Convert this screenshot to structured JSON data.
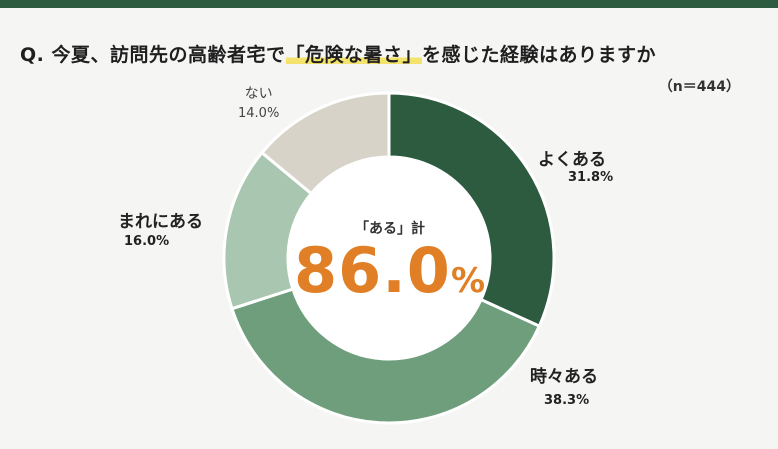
{
  "question": {
    "prefix": "Q. 今夏、訪問先の高齢者宅で",
    "highlight": "「危険な暑さ」",
    "suffix": "を感じた経験はありますか",
    "sample": "（n＝444）"
  },
  "center": {
    "label": "「ある」計",
    "value": "86.0",
    "unit": "%"
  },
  "colors": {
    "often": "#2d5b3f",
    "sometimes": "#6e9e7b",
    "rarely": "#a9c6b0",
    "never": "#d8d3c8",
    "accent": "#e07f25",
    "highlight": "#f3e26c"
  },
  "chart_data": {
    "type": "pie",
    "title": "Q. 今夏、訪問先の高齢者宅で「危険な暑さ」を感じた経験はありますか",
    "sample_size": 444,
    "categories": [
      "よくある",
      "時々ある",
      "まれにある",
      "ない"
    ],
    "values": [
      31.8,
      38.3,
      16.0,
      14.0
    ],
    "percent_labels": [
      "31.8%",
      "38.3%",
      "16.0%",
      "14.0%"
    ],
    "center_total_label": "「ある」計",
    "center_total": 86.0
  }
}
